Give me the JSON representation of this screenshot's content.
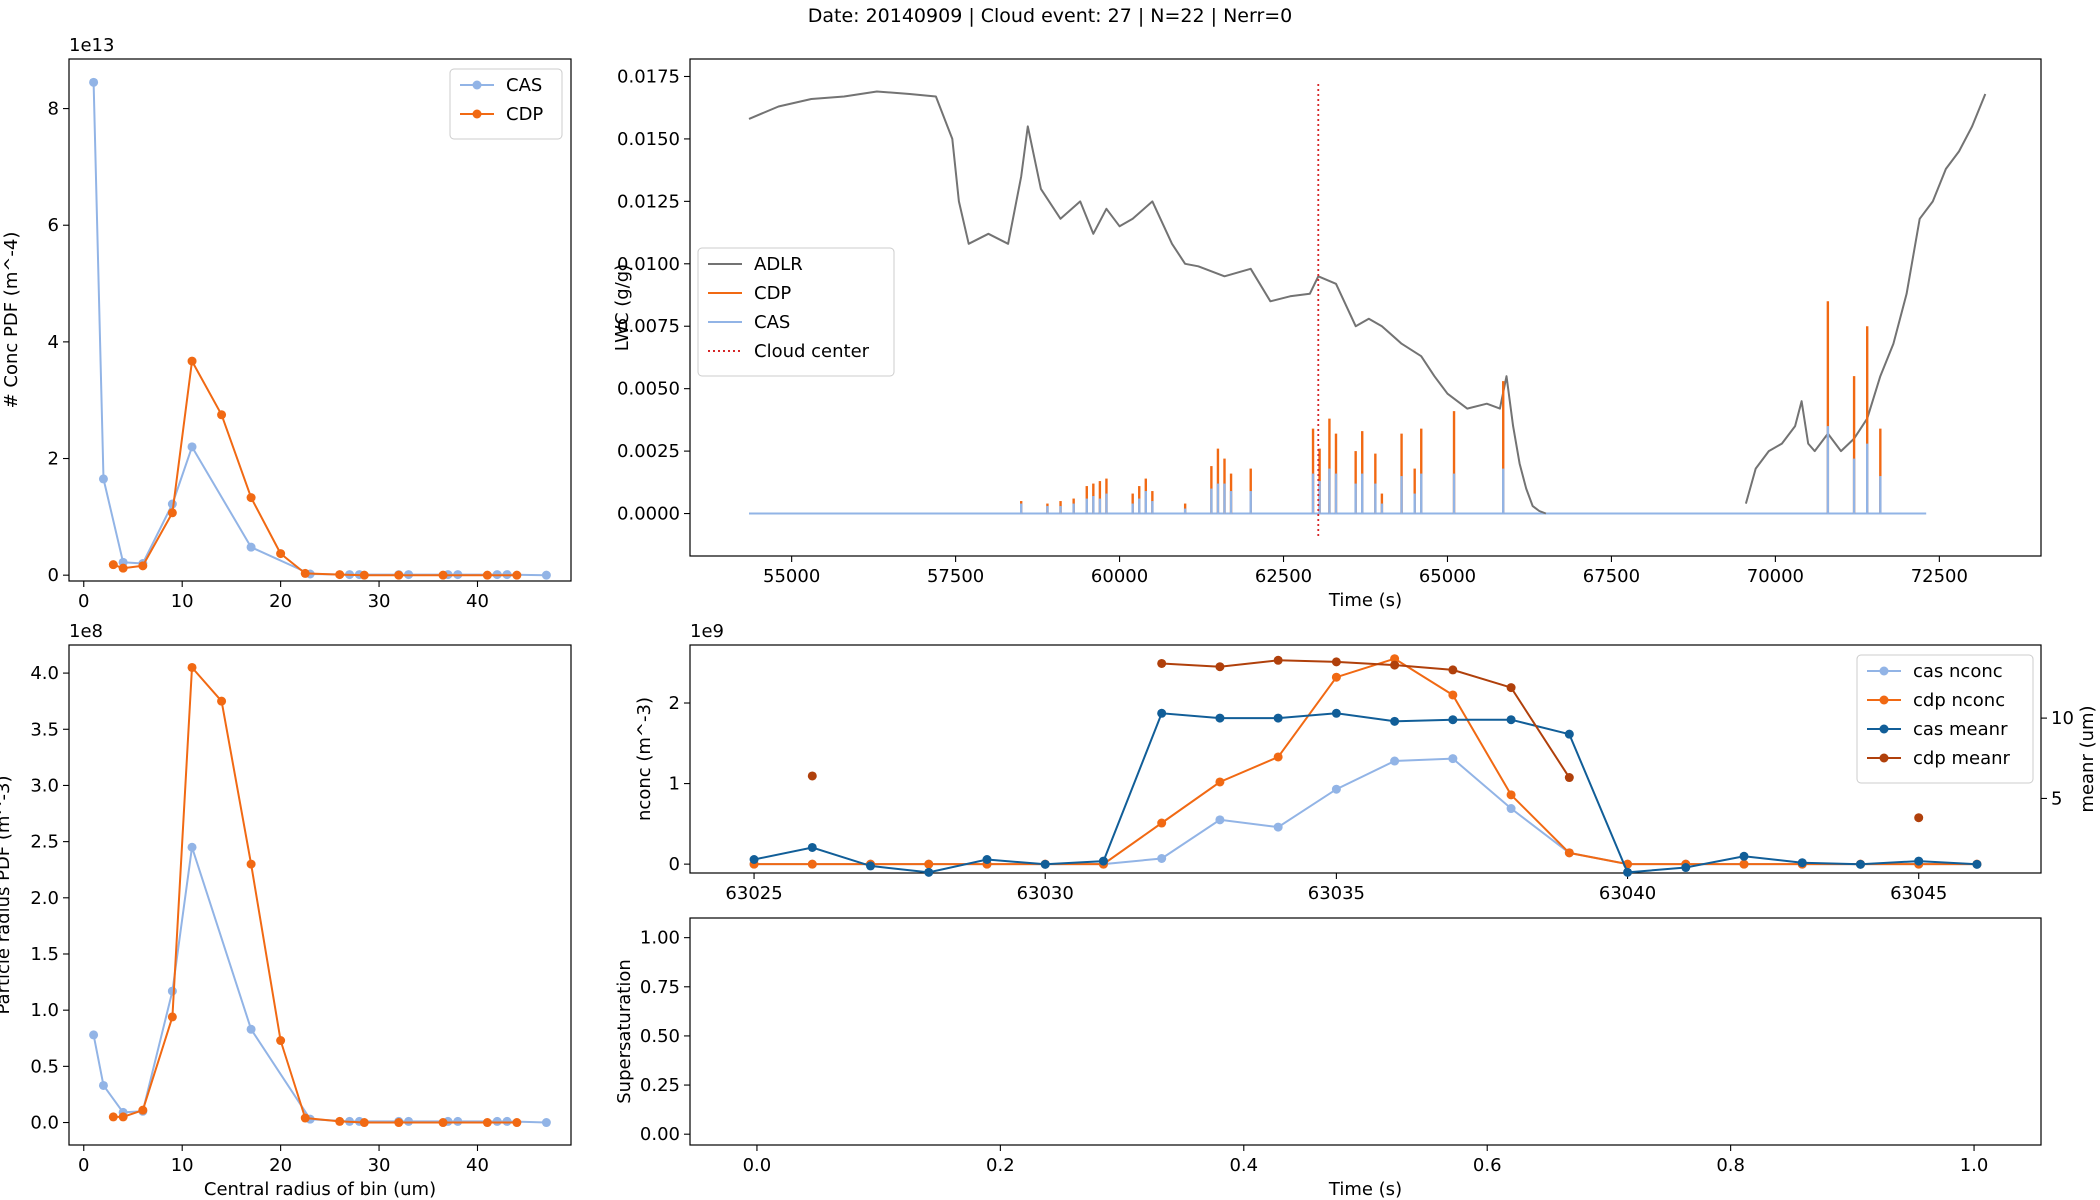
{
  "figure": {
    "suptitle": "Date: 20140909 | Cloud event: 27 | N=22 | Nerr=0"
  },
  "colors": {
    "cas": "#92b4e6",
    "cdp": "#f16913",
    "adlr": "#737373",
    "cas_meanr": "#115e98",
    "cdp_meanr": "#b0400b",
    "cloud_center": "#d62728"
  },
  "chart_data": [
    {
      "id": "conc_pdf",
      "type": "line",
      "ylabel": "# Conc PDF (m^-4)",
      "xlabel": "",
      "y_multiplier": "1e13",
      "xlim": [
        -1.5,
        49.5
      ],
      "ylim": [
        -0.1,
        8.85
      ],
      "xticks": [
        0,
        10,
        20,
        30,
        40
      ],
      "yticks": [
        0,
        2,
        4,
        6,
        8
      ],
      "legend": {
        "position": "top-right",
        "entries": [
          "CAS",
          "CDP"
        ]
      },
      "series": [
        {
          "name": "CAS",
          "x": [
            1,
            2,
            4,
            6,
            9,
            11,
            17,
            23,
            27,
            28,
            32,
            33,
            37,
            38,
            42,
            43,
            47
          ],
          "y": [
            8.45,
            1.65,
            0.22,
            0.2,
            1.22,
            2.2,
            0.48,
            0.02,
            0.01,
            0.01,
            0.01,
            0.01,
            0.01,
            0.01,
            0.01,
            0.01,
            0.0
          ]
        },
        {
          "name": "CDP",
          "x": [
            3,
            4,
            6,
            9,
            11,
            14,
            17,
            20,
            22.5,
            26,
            28.5,
            32,
            36.5,
            41,
            44
          ],
          "y": [
            0.18,
            0.12,
            0.16,
            1.07,
            3.67,
            2.75,
            1.33,
            0.37,
            0.03,
            0.01,
            0.0,
            0.0,
            0.0,
            0.0,
            0.0
          ]
        }
      ]
    },
    {
      "id": "lwc_time",
      "type": "line",
      "ylabel": "LWC (g/g)",
      "xlabel": "Time (s)",
      "xlim": [
        53450,
        74050
      ],
      "ylim": [
        -0.0017,
        0.0182
      ],
      "xticks": [
        55000,
        57500,
        60000,
        62500,
        65000,
        67500,
        70000,
        72500
      ],
      "yticks": [
        0.0,
        0.0025,
        0.005,
        0.0075,
        0.01,
        0.0125,
        0.015,
        0.0175
      ],
      "ytick_labels": [
        "0.0000",
        "0.0025",
        "0.0050",
        "0.0075",
        "0.0100",
        "0.0125",
        "0.0150",
        "0.0175"
      ],
      "legend": {
        "position": "center-left",
        "entries": [
          "ADLR",
          "CDP",
          "CAS",
          "Cloud center"
        ]
      },
      "cloud_center": 63030,
      "adlr": {
        "name": "ADLR",
        "x": [
          54350,
          54800,
          55300,
          55800,
          56300,
          56800,
          57200,
          57450,
          57550,
          57700,
          58000,
          58300,
          58500,
          58600,
          58800,
          59100,
          59400,
          59600,
          59800,
          60000,
          60200,
          60500,
          60800,
          61000,
          61200,
          61600,
          62000,
          62300,
          62600,
          62900,
          63030,
          63300,
          63600,
          63800,
          64000,
          64300,
          64600,
          64800,
          65000,
          65300,
          65600,
          65800,
          65900,
          66000,
          66100,
          66200,
          66300,
          66400,
          66500
        ],
        "y": [
          0.0158,
          0.0163,
          0.0166,
          0.0167,
          0.0169,
          0.0168,
          0.0167,
          0.015,
          0.0125,
          0.0108,
          0.0112,
          0.0108,
          0.0135,
          0.0155,
          0.013,
          0.0118,
          0.0125,
          0.0112,
          0.0122,
          0.0115,
          0.0118,
          0.0125,
          0.0108,
          0.01,
          0.0099,
          0.0095,
          0.0098,
          0.0085,
          0.0087,
          0.0088,
          0.0095,
          0.0092,
          0.0075,
          0.0078,
          0.0075,
          0.0068,
          0.0063,
          0.0055,
          0.0048,
          0.0042,
          0.0044,
          0.0042,
          0.0055,
          0.0035,
          0.002,
          0.001,
          0.0003,
          0.0001,
          0.0
        ]
      },
      "adlr2": {
        "name": "ADLR",
        "x": [
          69550,
          69700,
          69900,
          70100,
          70300,
          70400,
          70500,
          70600,
          70800,
          71000,
          71200,
          71400,
          71600,
          71800,
          72000,
          72200,
          72400,
          72600,
          72800,
          73000,
          73200
        ],
        "y": [
          0.0004,
          0.0018,
          0.0025,
          0.0028,
          0.0035,
          0.0045,
          0.0028,
          0.0025,
          0.0032,
          0.0025,
          0.003,
          0.0038,
          0.0055,
          0.0068,
          0.0088,
          0.0118,
          0.0125,
          0.0138,
          0.0145,
          0.0155,
          0.0168
        ]
      },
      "cas_baseline": {
        "name": "CAS",
        "x": [
          54350,
          72300
        ],
        "y": [
          0.0,
          0.0
        ]
      },
      "cdp_baseline": {
        "name": "CDP",
        "x": [
          54350,
          72300
        ],
        "y": [
          0.0,
          0.0
        ]
      },
      "cdp_spikes": {
        "x": [
          58500,
          58900,
          59100,
          59300,
          59500,
          59600,
          59700,
          59800,
          60200,
          60300,
          60400,
          60500,
          61000,
          61400,
          61500,
          61600,
          61700,
          62000,
          62950,
          63050,
          63200,
          63300,
          63600,
          63700,
          63900,
          64000,
          64300,
          64500,
          64600,
          65100,
          65850,
          70800,
          71200,
          71400,
          71600
        ],
        "y": [
          0.0005,
          0.0004,
          0.0005,
          0.0006,
          0.0011,
          0.0012,
          0.0013,
          0.0014,
          0.0008,
          0.0011,
          0.0014,
          0.0009,
          0.0004,
          0.0019,
          0.0026,
          0.0022,
          0.0016,
          0.0018,
          0.0034,
          0.0026,
          0.0038,
          0.0032,
          0.0025,
          0.0033,
          0.0024,
          0.0008,
          0.0032,
          0.0018,
          0.0034,
          0.0041,
          0.0053,
          0.0085,
          0.0055,
          0.0075,
          0.0034
        ]
      },
      "cas_spikes": {
        "x": [
          58500,
          58900,
          59100,
          59300,
          59500,
          59600,
          59700,
          59800,
          60200,
          60300,
          60400,
          60500,
          61000,
          61400,
          61500,
          61600,
          61700,
          62000,
          62950,
          63050,
          63200,
          63300,
          63600,
          63700,
          63900,
          64000,
          64300,
          64500,
          64600,
          65100,
          65850,
          70800,
          71200,
          71400,
          71600
        ],
        "y": [
          0.0004,
          0.0003,
          0.0003,
          0.0004,
          0.0006,
          0.0007,
          0.0006,
          0.0008,
          0.0004,
          0.0006,
          0.0009,
          0.0005,
          0.0002,
          0.001,
          0.0012,
          0.0012,
          0.0009,
          0.0009,
          0.0016,
          0.0013,
          0.0018,
          0.0016,
          0.0012,
          0.0016,
          0.0012,
          0.0004,
          0.0015,
          0.0008,
          0.0016,
          0.0016,
          0.0018,
          0.0035,
          0.0022,
          0.0028,
          0.0015
        ]
      }
    },
    {
      "id": "radius_pdf",
      "type": "line",
      "ylabel": "Particle radius PDF (m^-3)",
      "xlabel": "Central radius of bin (um)",
      "y_multiplier": "1e8",
      "xlim": [
        -1.5,
        49.5
      ],
      "ylim": [
        -0.2,
        4.25
      ],
      "xticks": [
        0,
        10,
        20,
        30,
        40
      ],
      "yticks": [
        0.0,
        0.5,
        1.0,
        1.5,
        2.0,
        2.5,
        3.0,
        3.5,
        4.0
      ],
      "ytick_labels": [
        "0.0",
        "0.5",
        "1.0",
        "1.5",
        "2.0",
        "2.5",
        "3.0",
        "3.5",
        "4.0"
      ],
      "series": [
        {
          "name": "CAS",
          "x": [
            1,
            2,
            4,
            6,
            9,
            11,
            17,
            23,
            27,
            28,
            32,
            33,
            37,
            38,
            42,
            43,
            47
          ],
          "y": [
            0.78,
            0.33,
            0.09,
            0.1,
            1.17,
            2.45,
            0.83,
            0.03,
            0.01,
            0.01,
            0.01,
            0.01,
            0.01,
            0.01,
            0.01,
            0.01,
            0.0
          ]
        },
        {
          "name": "CDP",
          "x": [
            3,
            4,
            6,
            9,
            11,
            14,
            17,
            20,
            22.5,
            26,
            28.5,
            32,
            36.5,
            41,
            44
          ],
          "y": [
            0.05,
            0.05,
            0.11,
            0.94,
            4.05,
            3.75,
            2.3,
            0.73,
            0.04,
            0.01,
            0.0,
            0.0,
            0.0,
            0.0,
            0.0
          ]
        }
      ]
    },
    {
      "id": "nconc_time",
      "type": "line",
      "ylabel": "nconc (m^-3)",
      "ylabel_right": "meanr (um)",
      "xlabel": "",
      "y_multiplier": "1e9",
      "xlim": [
        63023.9,
        63047.1
      ],
      "ylim": [
        -0.11,
        2.72
      ],
      "ylim_right": [
        0.36,
        14.55
      ],
      "xticks": [
        63025,
        63030,
        63035,
        63040,
        63045
      ],
      "yticks": [
        0,
        1,
        2
      ],
      "yticks_right": [
        5,
        10
      ],
      "legend": {
        "position": "top-right",
        "entries": [
          "cas nconc",
          "cdp nconc",
          "cas meanr",
          "cdp meanr"
        ]
      },
      "x": [
        63025,
        63026,
        63027,
        63028,
        63029,
        63030,
        63031,
        63032,
        63033,
        63034,
        63035,
        63036,
        63037,
        63038,
        63039,
        63040,
        63041,
        63042,
        63043,
        63044,
        63045,
        63046
      ],
      "series": [
        {
          "name": "cas nconc",
          "axis": "left",
          "y": [
            0.0,
            0.0,
            0.0,
            0.0,
            0.0,
            0.0,
            0.0,
            0.07,
            0.55,
            0.46,
            0.93,
            1.28,
            1.31,
            0.69,
            0.14,
            0.0,
            0.0,
            0.0,
            0.0,
            0.0,
            0.0,
            0.0
          ]
        },
        {
          "name": "cdp nconc",
          "axis": "left",
          "y": [
            0.0,
            0.0,
            0.0,
            0.0,
            0.0,
            0.0,
            0.0,
            0.51,
            1.02,
            1.33,
            2.32,
            2.55,
            2.1,
            0.86,
            0.14,
            0.0,
            0.0,
            0.0,
            0.0,
            0.0,
            0.0,
            0.0
          ]
        },
        {
          "name": "cas meanr",
          "axis": "right",
          "y": [
            1.2,
            1.95,
            0.8,
            0.4,
            1.2,
            0.9,
            1.1,
            10.3,
            10.0,
            10.0,
            10.3,
            9.8,
            9.9,
            9.9,
            9.0,
            0.4,
            0.7,
            1.4,
            1.0,
            0.9,
            1.1,
            0.9
          ]
        },
        {
          "name": "cdp meanr",
          "axis": "right",
          "y": [
            null,
            6.4,
            null,
            null,
            null,
            null,
            null,
            13.4,
            13.2,
            13.6,
            13.5,
            13.3,
            13.0,
            11.9,
            6.3,
            null,
            null,
            null,
            null,
            null,
            3.8,
            null
          ]
        }
      ]
    },
    {
      "id": "supersaturation",
      "type": "line",
      "ylabel": "Supersaturation",
      "xlabel": "Time (s)",
      "xlim": [
        -0.055,
        1.055
      ],
      "ylim": [
        -0.055,
        1.1
      ],
      "xticks": [
        0.0,
        0.2,
        0.4,
        0.6,
        0.8,
        1.0
      ],
      "xtick_labels": [
        "0.0",
        "0.2",
        "0.4",
        "0.6",
        "0.8",
        "1.0"
      ],
      "yticks": [
        0.0,
        0.25,
        0.5,
        0.75,
        1.0
      ],
      "ytick_labels": [
        "0.00",
        "0.25",
        "0.50",
        "0.75",
        "1.00"
      ],
      "series": []
    }
  ]
}
